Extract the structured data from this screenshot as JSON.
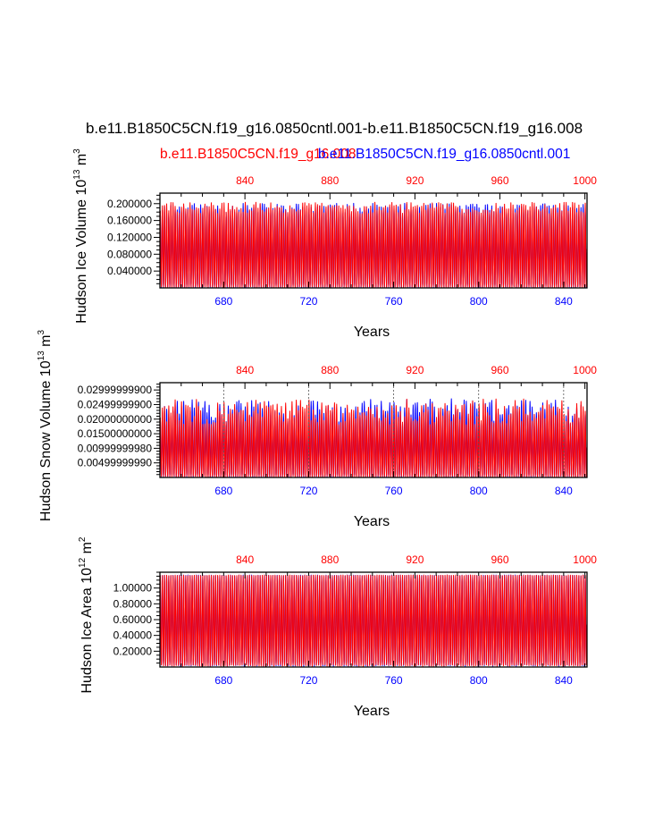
{
  "colors": {
    "case1": "#ff0000",
    "case2": "#0000ff",
    "axis": "#000000",
    "background": "#ffffff"
  },
  "figure": {
    "title": "b.e11.B1850C5CN.f19_g16.0850cntl.001-b.e11.B1850C5CN.f19_g16.008",
    "legend_red": "b.e11.B1850C5CN.f19_g16.008",
    "legend_blue": "b.e11.B1850C5CN.f19_g16.0850cntl.001"
  },
  "chart_data": [
    {
      "type": "line",
      "title": "",
      "ylabel": {
        "text": "Hudson Ice Volume 10",
        "sup": "13",
        "unit": " m",
        "unit_sup": "3"
      },
      "xlabel": "Years",
      "bottom_xlim": [
        650,
        851
      ],
      "top_xlim": [
        800,
        1001
      ],
      "ylim": [
        0.0,
        0.225
      ],
      "bottom_ticks": [
        "680",
        "720",
        "760",
        "800",
        "840"
      ],
      "top_ticks": [
        "840",
        "880",
        "920",
        "960",
        "1000"
      ],
      "y_tick_values": [
        0.04,
        0.08,
        0.12,
        0.16,
        0.2
      ],
      "y_tick_labels": [
        "0.040000",
        "0.080000",
        "0.120000",
        "0.160000",
        "0.200000"
      ],
      "y_minor_step": 0.01,
      "reference_lines": [],
      "series": [
        {
          "name": "b.e11.B1850C5CN.f19_g16.0850cntl.001",
          "color": "#0000ff",
          "axis": "bottom",
          "seasonal_min": 0.002,
          "seasonal_max_mean": 0.188,
          "seasonal_max_jitter": 0.013,
          "seed": 11
        },
        {
          "name": "b.e11.B1850C5CN.f19_g16.008",
          "color": "#ff0000",
          "axis": "top",
          "seasonal_min": 0.002,
          "seasonal_max_mean": 0.19,
          "seasonal_max_jitter": 0.014,
          "seed": 29
        }
      ]
    },
    {
      "type": "line",
      "title": "",
      "ylabel": {
        "text": "Hudson Snow Volume 10",
        "sup": "13",
        "unit": " m",
        "unit_sup": "3"
      },
      "xlabel": "Years",
      "bottom_xlim": [
        650,
        851
      ],
      "top_xlim": [
        800,
        1001
      ],
      "ylim": [
        0.0,
        0.0325
      ],
      "bottom_ticks": [
        "680",
        "720",
        "760",
        "800",
        "840"
      ],
      "top_ticks": [
        "840",
        "880",
        "920",
        "960",
        "1000"
      ],
      "y_tick_values": [
        0.005,
        0.01,
        0.015,
        0.02,
        0.025,
        0.03
      ],
      "y_tick_labels": [
        "0.00499999990",
        "0.00999999980",
        "0.01500000000",
        "0.02000000000",
        "0.02499999900",
        "0.02999999900"
      ],
      "y_minor_step": 0.001,
      "reference_lines": [
        680,
        720,
        760,
        800,
        840
      ],
      "series": [
        {
          "name": "b.e11.B1850C5CN.f19_g16.0850cntl.001",
          "color": "#0000ff",
          "axis": "bottom",
          "seasonal_min": 0.0003,
          "seasonal_max_mean": 0.0225,
          "seasonal_max_jitter": 0.0045,
          "seed": 47
        },
        {
          "name": "b.e11.B1850C5CN.f19_g16.008",
          "color": "#ff0000",
          "axis": "top",
          "seasonal_min": 0.0003,
          "seasonal_max_mean": 0.0225,
          "seasonal_max_jitter": 0.0045,
          "seed": 83
        }
      ]
    },
    {
      "type": "line",
      "title": "",
      "ylabel": {
        "text": "Hudson Ice Area 10",
        "sup": "12",
        "unit": " m",
        "unit_sup": "2"
      },
      "xlabel": "Years",
      "bottom_xlim": [
        650,
        851
      ],
      "top_xlim": [
        800,
        1001
      ],
      "ylim": [
        0.0,
        1.2
      ],
      "bottom_ticks": [
        "680",
        "720",
        "760",
        "800",
        "840"
      ],
      "top_ticks": [
        "840",
        "880",
        "920",
        "960",
        "1000"
      ],
      "y_tick_values": [
        0.2,
        0.4,
        0.6,
        0.8,
        1.0
      ],
      "y_tick_labels": [
        "0.20000",
        "0.40000",
        "0.60000",
        "0.80000",
        "1.00000"
      ],
      "y_minor_step": 0.05,
      "reference_lines": [],
      "series": [
        {
          "name": "b.e11.B1850C5CN.f19_g16.0850cntl.001",
          "color": "#0000ff",
          "axis": "bottom",
          "seasonal_min": 0.02,
          "seasonal_max_mean": 1.16,
          "seasonal_max_jitter": 0.005,
          "seed": 5
        },
        {
          "name": "b.e11.B1850C5CN.f19_g16.008",
          "color": "#ff0000",
          "axis": "top",
          "seasonal_min": 0.02,
          "seasonal_max_mean": 1.16,
          "seasonal_max_jitter": 0.005,
          "seed": 17
        }
      ]
    }
  ]
}
